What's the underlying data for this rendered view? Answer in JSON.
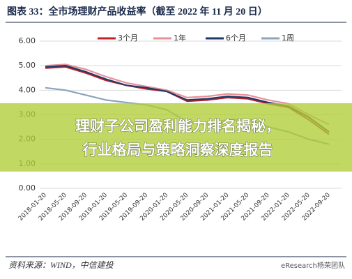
{
  "chart_data": {
    "type": "line",
    "title": "图表 33：全市场理财产品收益率（截至 2022 年 11 月 20 日）",
    "categories": [
      "2018-01-20",
      "2018-05-20",
      "2018-09-20",
      "2019-01-20",
      "2019-05-20",
      "2019-09-20",
      "2020-01-20",
      "2020-05-20",
      "2020-09-20",
      "2021-01-20",
      "2021-05-20",
      "2021-09-20",
      "2022-01-20",
      "2022-05-20",
      "2022-09-20"
    ],
    "series": [
      {
        "name": "3个月",
        "color": "#c0202a",
        "values": [
          4.9,
          4.95,
          4.7,
          4.4,
          4.2,
          4.05,
          3.95,
          3.55,
          3.6,
          3.7,
          3.65,
          3.45,
          3.3,
          2.8,
          2.2
        ]
      },
      {
        "name": "1年",
        "color": "#e89098",
        "values": [
          5.0,
          5.05,
          4.85,
          4.55,
          4.3,
          4.15,
          4.0,
          3.7,
          3.75,
          3.85,
          3.8,
          3.6,
          3.45,
          3.0,
          2.6
        ]
      },
      {
        "name": "6个月",
        "color": "#1f3a68",
        "values": [
          4.95,
          5.0,
          4.75,
          4.45,
          4.2,
          4.1,
          3.95,
          3.6,
          3.65,
          3.75,
          3.7,
          3.5,
          3.35,
          2.9,
          2.3
        ]
      },
      {
        "name": "1周",
        "color": "#8aa4be",
        "values": [
          4.1,
          4.0,
          3.8,
          3.6,
          3.5,
          3.4,
          3.2,
          2.7,
          2.6,
          2.8,
          2.8,
          2.5,
          2.3,
          2.0,
          1.8
        ]
      }
    ],
    "ylim": [
      0,
      6
    ],
    "yticks": [
      {
        "value": 0,
        "label": "0.00"
      },
      {
        "value": 1,
        "label": "1.00"
      },
      {
        "value": 2,
        "label": "2.00"
      },
      {
        "value": 3,
        "label": "3.00"
      },
      {
        "value": 4,
        "label": "4.00"
      },
      {
        "value": 5,
        "label": "5.00"
      },
      {
        "value": 6,
        "label": "6.00"
      }
    ],
    "grid": true
  },
  "banner": {
    "lines": [
      "理财子公司盈利能力排名揭秘，",
      "行业格局与策略洞察深度报告"
    ]
  },
  "footer": {
    "source": "资料来源：WIND，中信建投",
    "watermark": "eResearch杨荣团队"
  }
}
